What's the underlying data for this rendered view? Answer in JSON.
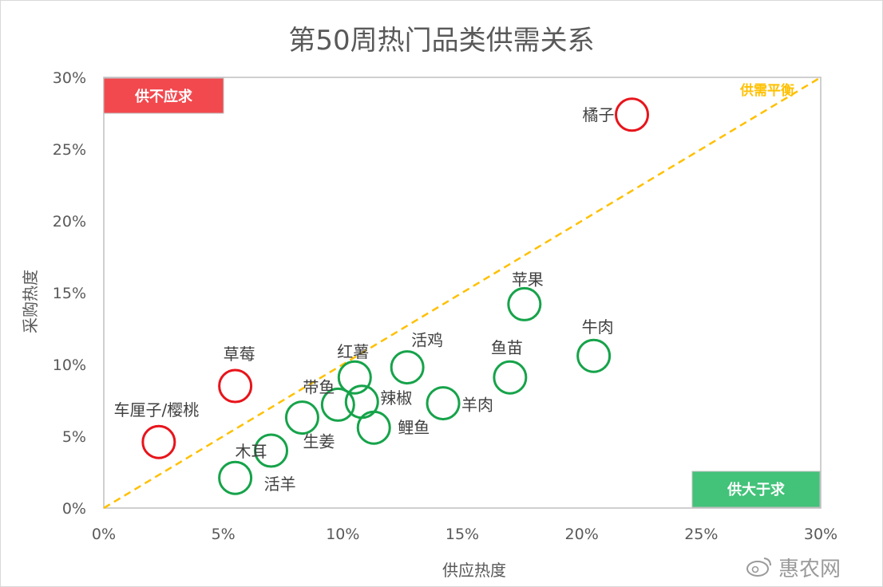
{
  "chart_data": {
    "type": "scatter",
    "title": "第50周热门品类供需关系",
    "xlabel": "供应热度",
    "ylabel": "采购热度",
    "xlim": [
      0,
      30
    ],
    "ylim": [
      0,
      30
    ],
    "x_ticks": [
      "0%",
      "5%",
      "10%",
      "15%",
      "20%",
      "25%",
      "30%"
    ],
    "y_ticks": [
      "0%",
      "5%",
      "10%",
      "15%",
      "20%",
      "25%",
      "30%"
    ],
    "grid": false,
    "points": [
      {
        "name": "橘子",
        "x": 22.1,
        "y": 27.4,
        "group": "demand"
      },
      {
        "name": "草莓",
        "x": 5.5,
        "y": 8.5,
        "group": "demand"
      },
      {
        "name": "车厘子/樱桃",
        "x": 2.3,
        "y": 4.6,
        "group": "demand"
      },
      {
        "name": "苹果",
        "x": 17.6,
        "y": 14.2,
        "group": "supply"
      },
      {
        "name": "牛肉",
        "x": 20.5,
        "y": 10.6,
        "group": "supply"
      },
      {
        "name": "鱼苗",
        "x": 17.0,
        "y": 9.1,
        "group": "supply"
      },
      {
        "name": "活鸡",
        "x": 12.7,
        "y": 9.8,
        "group": "supply"
      },
      {
        "name": "红薯",
        "x": 10.5,
        "y": 9.1,
        "group": "supply"
      },
      {
        "name": "带鱼",
        "x": 9.8,
        "y": 7.2,
        "group": "supply"
      },
      {
        "name": "辣椒",
        "x": 10.8,
        "y": 7.4,
        "group": "supply"
      },
      {
        "name": "羊肉",
        "x": 14.2,
        "y": 7.3,
        "group": "supply"
      },
      {
        "name": "鲤鱼",
        "x": 11.3,
        "y": 5.6,
        "group": "supply"
      },
      {
        "name": "生姜",
        "x": 8.3,
        "y": 6.3,
        "group": "supply"
      },
      {
        "name": "木耳",
        "x": 7.0,
        "y": 4.0,
        "group": "supply"
      },
      {
        "name": "活羊",
        "x": 5.5,
        "y": 2.1,
        "group": "supply"
      }
    ],
    "balance_line": {
      "label": "供需平衡",
      "from": [
        0,
        0
      ],
      "to": [
        30,
        30
      ]
    },
    "annotations": {
      "demand_label": "供不应求",
      "supply_label": "供大于求"
    }
  },
  "colors": {
    "demand": "#e8141b",
    "supply": "#16a34a",
    "balance": "#ffc000",
    "demand_box": "#f2494e",
    "supply_box": "#43c27a",
    "axis": "#bfbfbf"
  },
  "watermark": "惠农网"
}
